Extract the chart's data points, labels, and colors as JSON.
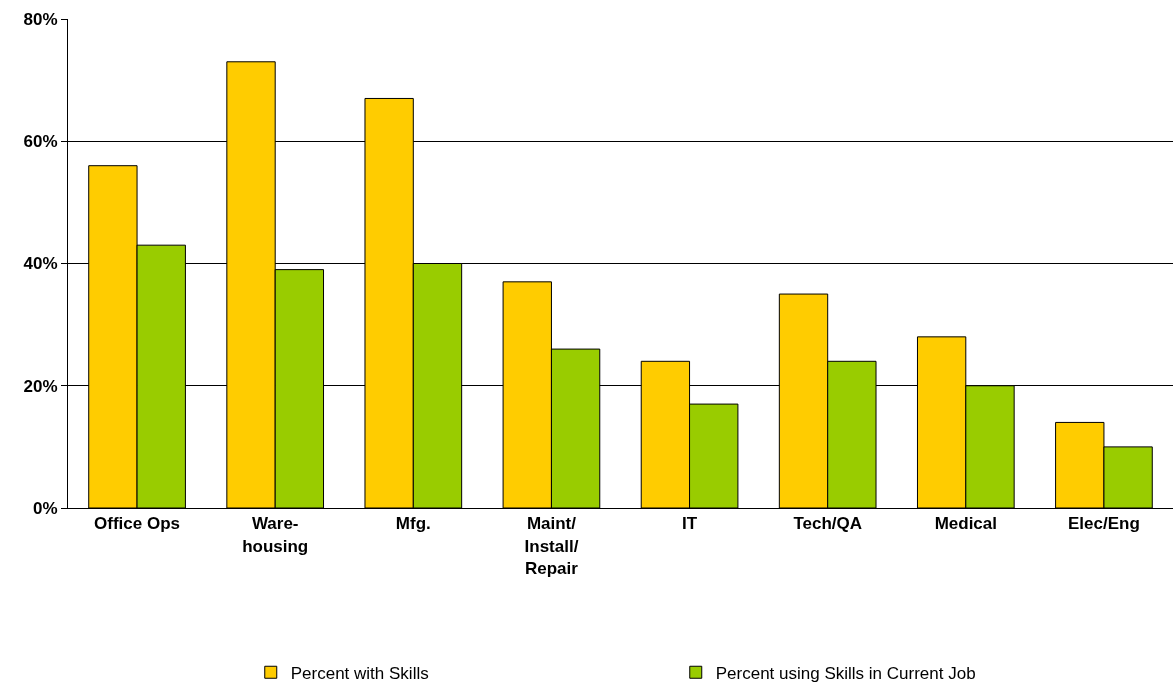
{
  "chart_data": {
    "type": "bar",
    "categories": [
      "Office Ops",
      "Ware-\nhousing",
      "Mfg.",
      "Maint/\nInstall/\nRepair",
      "IT",
      "Tech/QA",
      "Medical",
      "Elec/Eng"
    ],
    "series": [
      {
        "name": "Percent with Skills",
        "color": "#ffcc00",
        "values": [
          56,
          73,
          67,
          37,
          24,
          35,
          28,
          14
        ]
      },
      {
        "name": "Percent using Skills in Current Job",
        "color": "#99cc00",
        "values": [
          43,
          39,
          40,
          26,
          17,
          24,
          20,
          10
        ]
      }
    ],
    "ylim": [
      0,
      80
    ],
    "yticks": [
      {
        "value": 0,
        "label": "0%"
      },
      {
        "value": 20,
        "label": "20%"
      },
      {
        "value": 40,
        "label": "40%"
      },
      {
        "value": 60,
        "label": "60%"
      },
      {
        "value": 80,
        "label": "80%"
      }
    ],
    "grid": "y",
    "legend": "bottom"
  }
}
